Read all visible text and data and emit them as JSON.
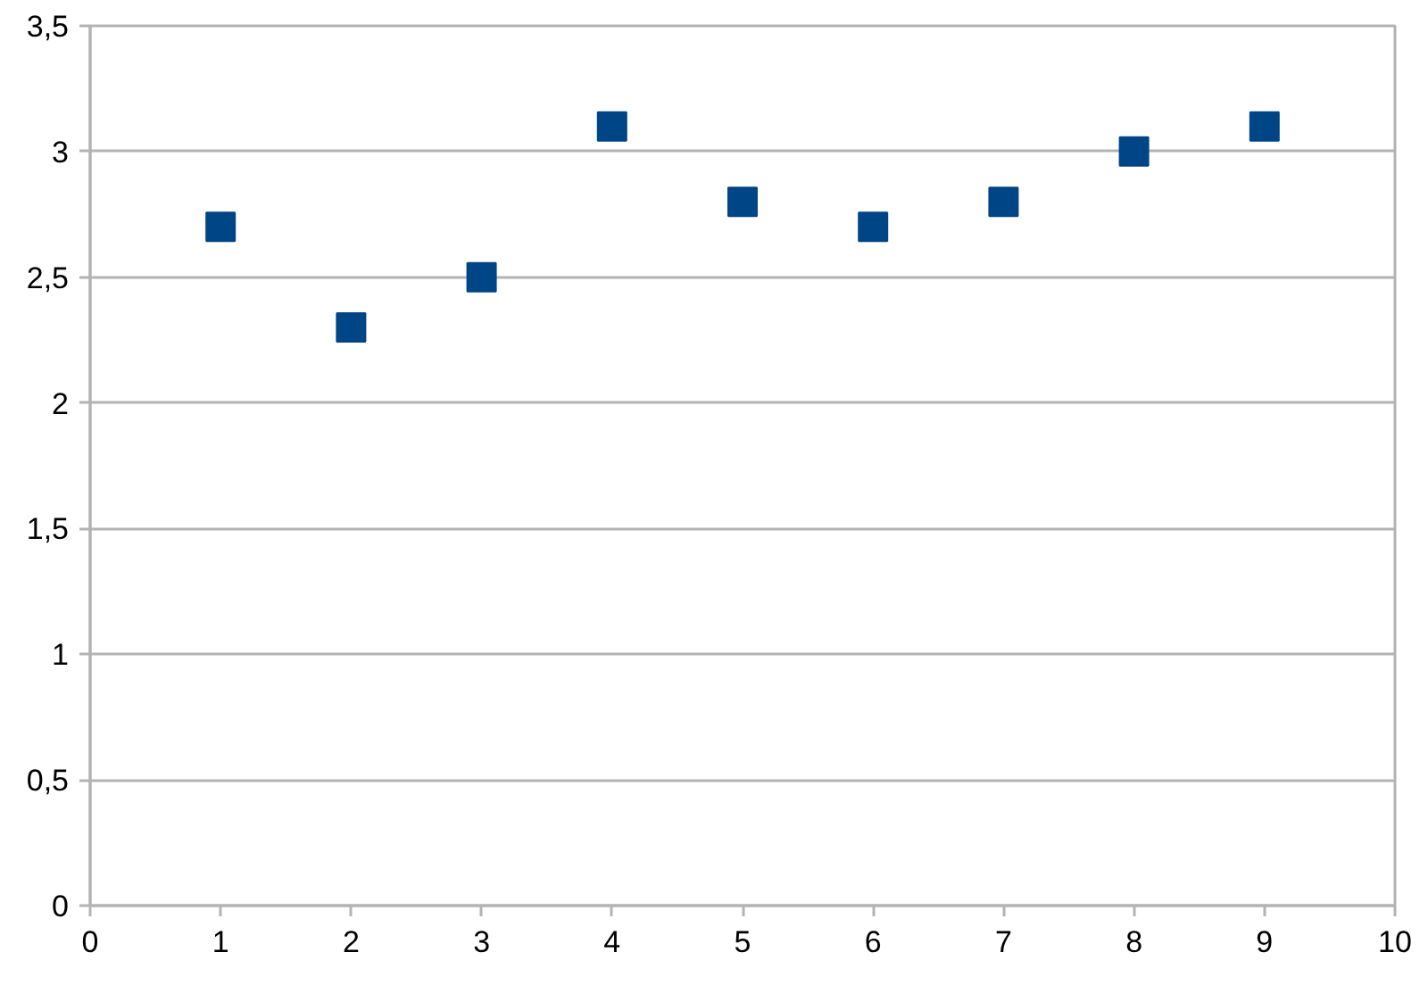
{
  "chart_data": {
    "type": "scatter",
    "x": [
      1,
      2,
      3,
      4,
      5,
      6,
      7,
      8,
      9
    ],
    "series": [
      {
        "color": "#004586",
        "values": [
          2.7,
          2.3,
          2.5,
          3.1,
          2.8,
          2.7,
          2.8,
          3.0,
          3.1
        ]
      }
    ],
    "xlim": [
      0,
      10
    ],
    "xticks": [
      0,
      1,
      2,
      3,
      4,
      5,
      6,
      7,
      8,
      9,
      10
    ],
    "ylim": [
      0,
      3.5
    ],
    "yticks": [
      0,
      {
        "value": 0.5,
        "label": "0,5"
      },
      1,
      {
        "value": 1.5,
        "label": "1,5"
      },
      2,
      {
        "value": 2.5,
        "label": "2,5"
      },
      3,
      {
        "value": 3.5,
        "label": "3,5"
      }
    ],
    "grid": "y",
    "marker": "square"
  }
}
